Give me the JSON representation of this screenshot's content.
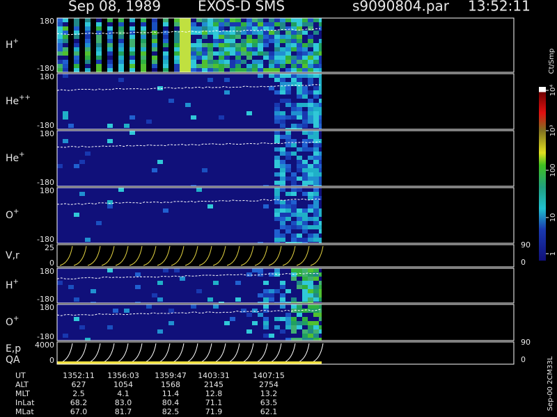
{
  "header": {
    "date": "Sep 08, 1989",
    "instrument": "EXOS-D SMS",
    "file": "s9090804.par",
    "time": "13:52:11"
  },
  "panels": [
    {
      "label": {
        "base": "H",
        "sup": "+"
      },
      "yticks": [
        180,
        -180
      ]
    },
    {
      "label": {
        "base": "He",
        "sup": "++"
      },
      "yticks": [
        180,
        -180
      ]
    },
    {
      "label": {
        "base": "He",
        "sup": "+"
      },
      "yticks": [
        180,
        -180
      ]
    },
    {
      "label": {
        "base": "O",
        "sup": "+"
      },
      "yticks": [
        180,
        -180
      ]
    },
    {
      "label": {
        "base": "V,r"
      },
      "yticks": [
        25,
        0
      ],
      "y2ticks": [
        90,
        0
      ]
    },
    {
      "label": {
        "base": "H",
        "sup": "+"
      },
      "yticks": [
        180,
        -180
      ]
    },
    {
      "label": {
        "base": "O",
        "sup": "+"
      },
      "yticks": [
        180,
        -180
      ]
    },
    {
      "label": {
        "base": "E,p",
        "sub": "QA"
      },
      "yticks": [
        4000,
        0
      ],
      "y2ticks": [
        90,
        0
      ]
    }
  ],
  "colorbar": {
    "title": "Ct/Smp",
    "ticks": [
      1,
      10,
      100,
      {
        "value": 1000,
        "label": "10³"
      },
      {
        "value": 10000,
        "label": "10⁴"
      }
    ]
  },
  "footer": {
    "rows": [
      {
        "name": "UT",
        "values": [
          "1352:11",
          "1356:03",
          "1359:47",
          "1403:31",
          "1407:15"
        ]
      },
      {
        "name": "ALT",
        "values": [
          "627",
          "1054",
          "1568",
          "2145",
          "2754"
        ]
      },
      {
        "name": "MLT",
        "values": [
          "2.5",
          "4.1",
          "11.4",
          "12.8",
          "13.2"
        ]
      },
      {
        "name": "InLat",
        "values": [
          "68.2",
          "83.0",
          "80.4",
          "71.1",
          "63.5"
        ]
      },
      {
        "name": "MLat",
        "values": [
          "67.0",
          "81.7",
          "82.5",
          "71.9",
          "62.1"
        ]
      }
    ],
    "stamp": "Sep-00 2CM33L"
  }
}
